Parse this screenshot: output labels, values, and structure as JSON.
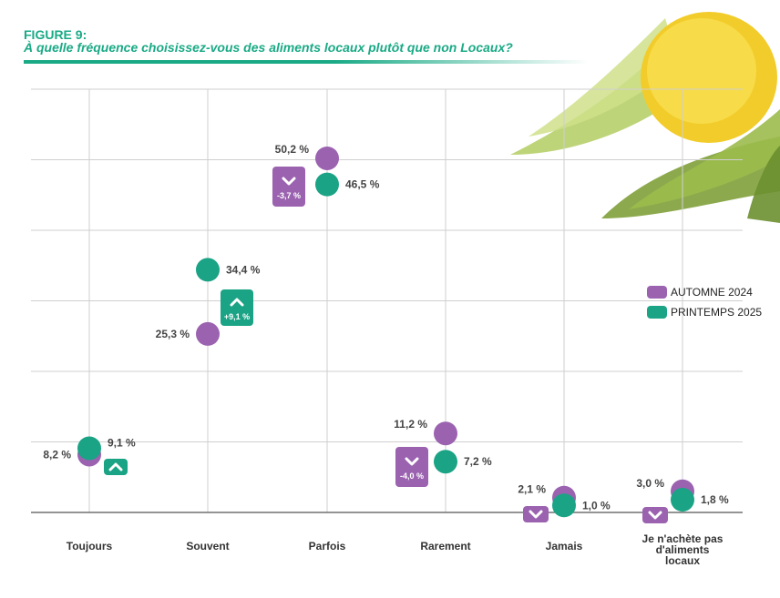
{
  "figure_label": "FIGURE 9:",
  "figure_title": "À quelle fréquence choisissez-vous des aliments locaux plutôt que non Locaux?",
  "colors": {
    "autumn": "#9b62b0",
    "spring": "#1aa385",
    "accent": "#1aaa86",
    "grid": "#cfcfcf"
  },
  "legend": [
    {
      "label": "AUTOMNE 2024",
      "color": "#9b62b0"
    },
    {
      "label": "PRINTEMPS 2025",
      "color": "#1aa385"
    }
  ],
  "chart_data": {
    "type": "scatter",
    "categories": [
      "Toujours",
      "Souvent",
      "Parfois",
      "Rarement",
      "Jamais",
      "Je n'achète pas\nd'aliments\nlocaux"
    ],
    "ylim": [
      0,
      60
    ],
    "grid": true,
    "legend_position": "right",
    "series": [
      {
        "name": "AUTOMNE 2024",
        "values": [
          8.2,
          25.3,
          50.2,
          11.2,
          2.1,
          3.0
        ],
        "labels": [
          "8,2 %",
          "25,3 %",
          "50,2 %",
          "11,2 %",
          "2,1 %",
          "3,0 %"
        ]
      },
      {
        "name": "PRINTEMPS 2025",
        "values": [
          9.1,
          34.4,
          46.5,
          7.2,
          1.0,
          1.8
        ],
        "labels": [
          "9,1 %",
          "34,4 %",
          "46,5 %",
          "7,2 %",
          "1,0 %",
          "1,8 %"
        ]
      }
    ],
    "changes": [
      {
        "direction": "up",
        "text": ""
      },
      {
        "direction": "up",
        "text": "+9,1 %"
      },
      {
        "direction": "down",
        "text": "-3,7 %"
      },
      {
        "direction": "down",
        "text": "-4,0 %"
      },
      {
        "direction": "down",
        "text": ""
      },
      {
        "direction": "down",
        "text": ""
      }
    ]
  }
}
